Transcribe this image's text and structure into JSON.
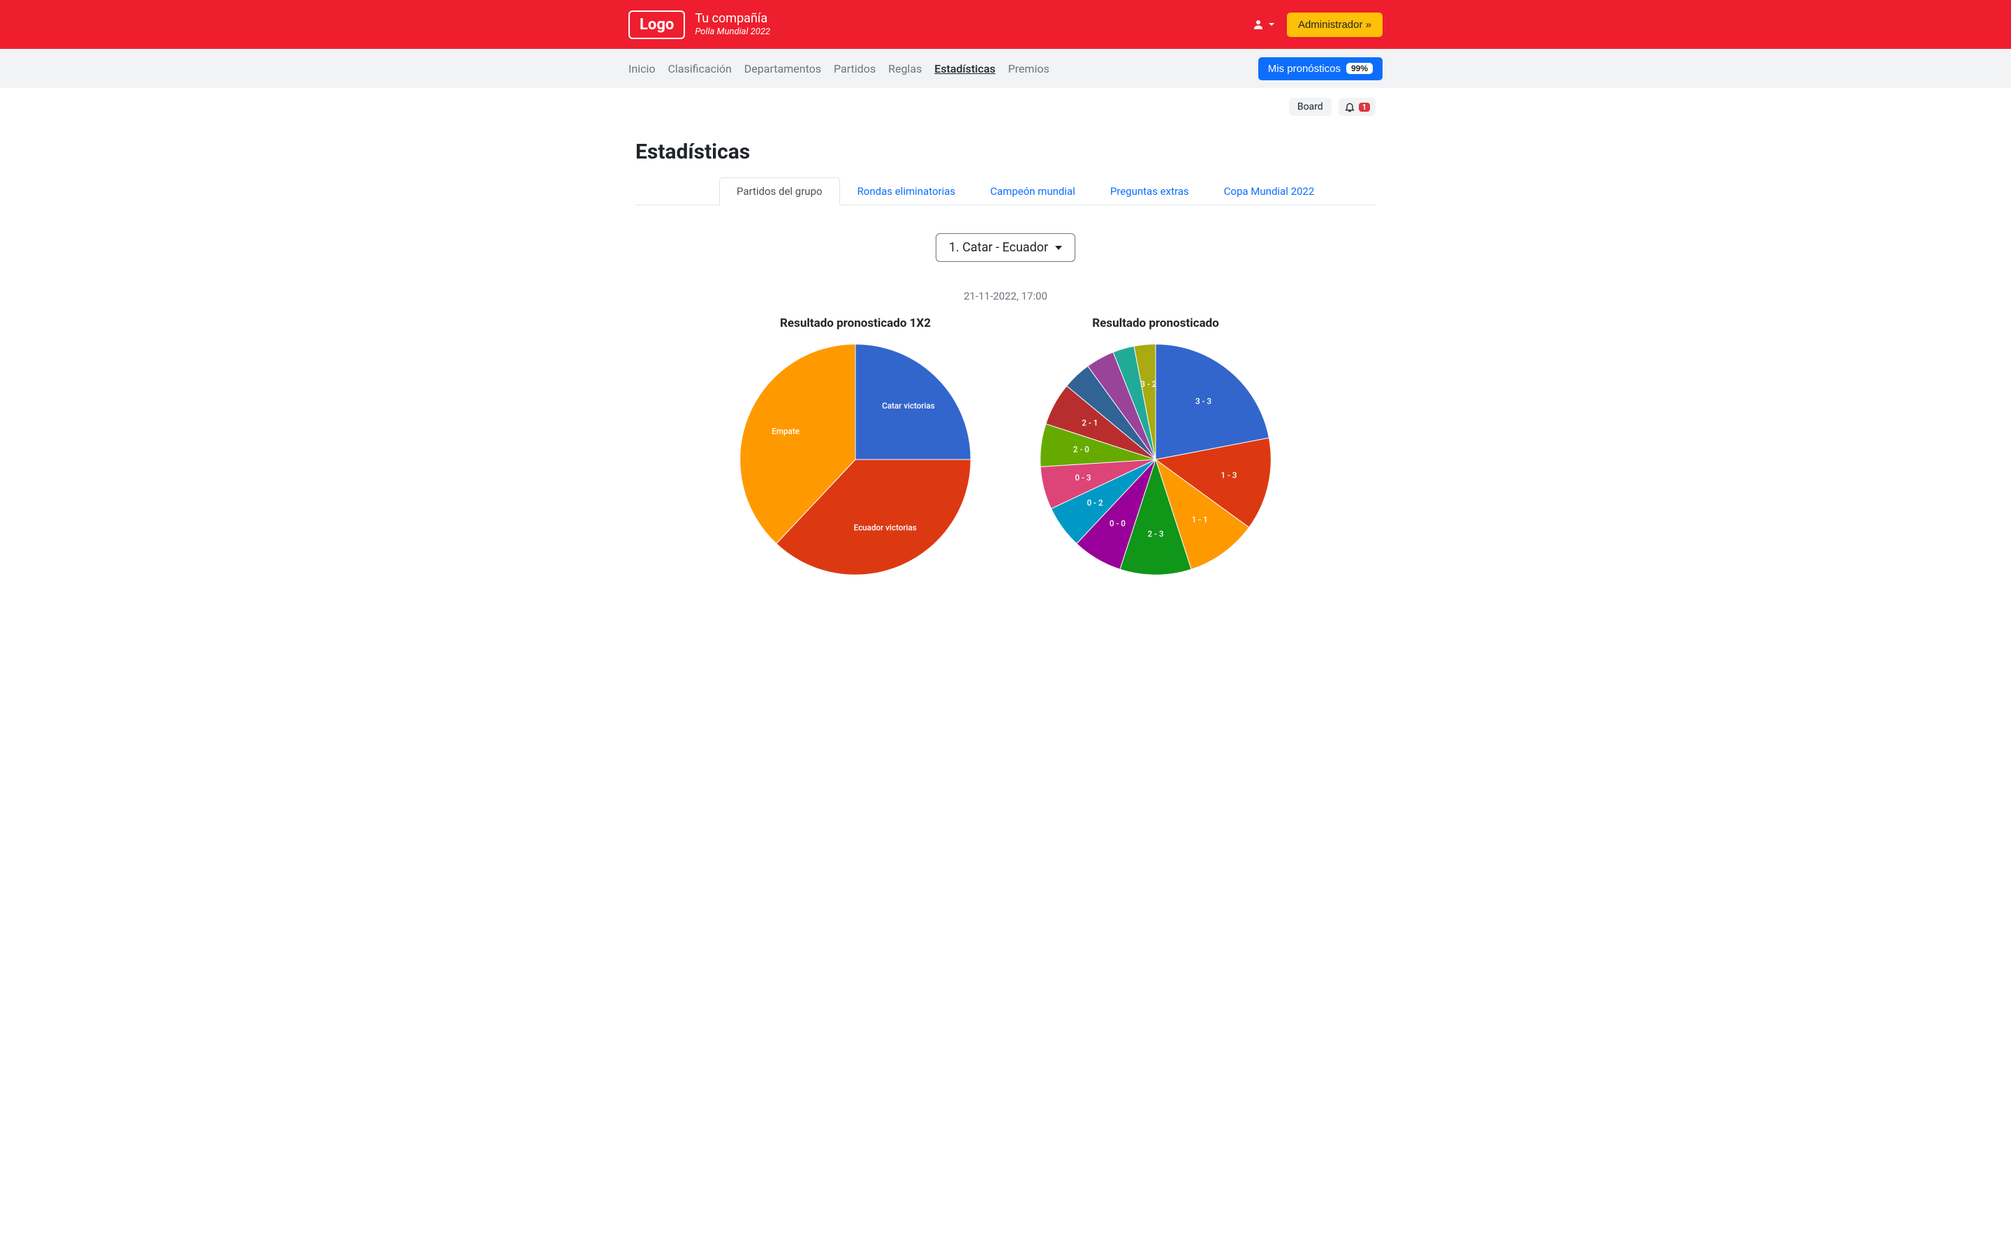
{
  "header": {
    "logo_text": "Logo",
    "company_name": "Tu compañía",
    "company_sub": "Polla Mundial 2022",
    "admin_button": "Administrador »"
  },
  "nav": {
    "items": [
      "Inicio",
      "Clasificación",
      "Departamentos",
      "Partidos",
      "Reglas",
      "Estadísticas",
      "Premios"
    ],
    "active_index": 5,
    "pron_button": "Mis pronósticos",
    "pron_badge": "99%"
  },
  "subrow": {
    "board": "Board",
    "bell_count": "1"
  },
  "page_title": "Estadísticas",
  "tabs": {
    "items": [
      "Partidos del grupo",
      "Rondas eliminatorias",
      "Campeón mundial",
      "Preguntas extras",
      "Copa Mundial 2022"
    ],
    "active_index": 0
  },
  "match": {
    "selected": "1. Catar - Ecuador",
    "date": "21-11-2022, 17:00"
  },
  "chart1": {
    "title": "Resultado pronosticado 1X2",
    "background_color": "#ffffff",
    "type": "pie",
    "radius": 170,
    "slices": [
      {
        "label": "Catar victorias",
        "value": 25,
        "color": "#3366cc"
      },
      {
        "label": "Ecuador victorias",
        "value": 37,
        "color": "#dc3912"
      },
      {
        "label": "Empate",
        "value": 38,
        "color": "#ff9900"
      }
    ]
  },
  "chart2": {
    "title": "Resultado pronosticado",
    "background_color": "#ffffff",
    "type": "pie",
    "radius": 170,
    "slices": [
      {
        "label": "3 - 3",
        "value": 22,
        "color": "#3366cc"
      },
      {
        "label": "1 - 3",
        "value": 13,
        "color": "#dc3912"
      },
      {
        "label": "1 - 1",
        "value": 10,
        "color": "#ff9900"
      },
      {
        "label": "2 - 3",
        "value": 10,
        "color": "#109618"
      },
      {
        "label": "0 - 0",
        "value": 7,
        "color": "#990099"
      },
      {
        "label": "0 - 2",
        "value": 6,
        "color": "#0099c6"
      },
      {
        "label": "0 - 3",
        "value": 6,
        "color": "#dd4477"
      },
      {
        "label": "2 - 0",
        "value": 6,
        "color": "#66aa00"
      },
      {
        "label": "2 - 1",
        "value": 6,
        "color": "#b82e2e"
      },
      {
        "label": "",
        "value": 4,
        "color": "#316395"
      },
      {
        "label": "",
        "value": 4,
        "color": "#994499"
      },
      {
        "label": "",
        "value": 3,
        "color": "#22aa99"
      },
      {
        "label": "3 - 2",
        "value": 3,
        "color": "#aaaa11"
      }
    ]
  }
}
